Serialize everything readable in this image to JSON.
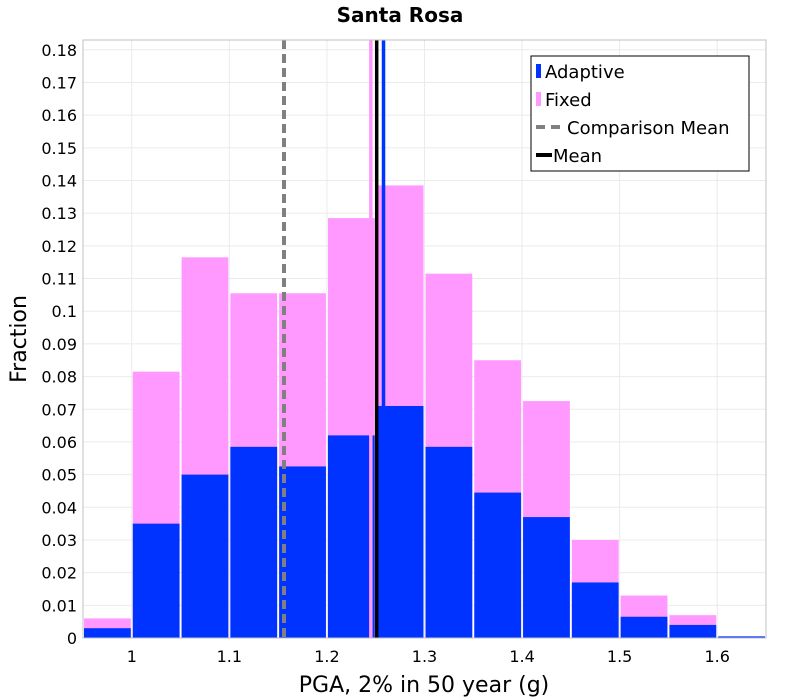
{
  "chart_data": {
    "type": "bar",
    "title": "Santa Rosa",
    "xlabel": "PGA, 2% in 50 year (g)",
    "ylabel": "Fraction",
    "xlim": [
      0.95,
      1.65
    ],
    "ylim": [
      0,
      0.183
    ],
    "bin_width": 0.05,
    "grid": true,
    "legend_position": "top-right",
    "x_ticks": [
      1,
      1.1,
      1.2,
      1.3,
      1.4,
      1.5,
      1.6
    ],
    "x_tick_labels": [
      "1",
      "1.1",
      "1.2",
      "1.3",
      "1.4",
      "1.5",
      "1.6"
    ],
    "y_ticks": [
      0,
      0.01,
      0.02,
      0.03,
      0.04,
      0.05,
      0.06,
      0.07,
      0.08,
      0.09,
      0.1,
      0.11,
      0.12,
      0.13,
      0.14,
      0.15,
      0.16,
      0.17,
      0.18
    ],
    "y_tick_labels": [
      "0",
      "0.01",
      "0.02",
      "0.03",
      "0.04",
      "0.05",
      "0.06",
      "0.07",
      "0.08",
      "0.09",
      "0.1",
      "0.11",
      "0.12",
      "0.13",
      "0.14",
      "0.15",
      "0.16",
      "0.17",
      "0.18"
    ],
    "bin_centers": [
      0.975,
      1.025,
      1.075,
      1.125,
      1.175,
      1.225,
      1.275,
      1.325,
      1.375,
      1.425,
      1.475,
      1.525,
      1.575,
      1.625
    ],
    "series": [
      {
        "name": "Fixed",
        "color": "#ff99ff",
        "values": [
          0.006,
          0.0815,
          0.1165,
          0.1055,
          0.1055,
          0.1285,
          0.1385,
          0.1115,
          0.085,
          0.0725,
          0.03,
          0.013,
          0.007,
          0.0
        ]
      },
      {
        "name": "Adaptive",
        "color": "#0033ff",
        "values": [
          0.003,
          0.035,
          0.05,
          0.0585,
          0.0525,
          0.062,
          0.071,
          0.0585,
          0.0445,
          0.037,
          0.017,
          0.0065,
          0.004,
          0.0005
        ]
      }
    ],
    "lines": [
      {
        "name": "Comparison Mean",
        "x": 1.156,
        "color": "#808080",
        "style": "dashed"
      },
      {
        "name": "Mean",
        "x": 1.251,
        "color": "#000000",
        "style": "solid"
      },
      {
        "name": "Fixed Mean",
        "x": 1.245,
        "color": "#ff99ff",
        "style": "solid"
      },
      {
        "name": "Adaptive Mean",
        "x": 1.258,
        "color": "#0033ff",
        "style": "solid"
      }
    ],
    "legend": [
      {
        "label": "Adaptive",
        "color": "#0033ff",
        "kind": "box"
      },
      {
        "label": "Fixed",
        "color": "#ff99ff",
        "kind": "box"
      },
      {
        "label": "Comparison Mean",
        "color": "#808080",
        "kind": "dash"
      },
      {
        "label": "Mean",
        "color": "#000000",
        "kind": "line"
      }
    ]
  }
}
